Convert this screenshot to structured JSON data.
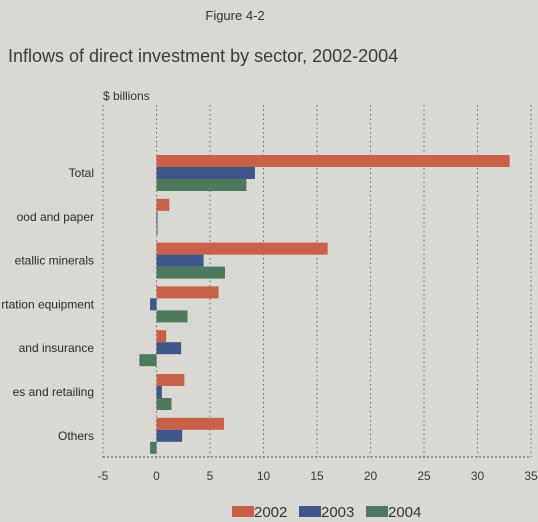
{
  "figure_label": "Figure 4-2",
  "chart_data": {
    "type": "bar",
    "orientation": "horizontal",
    "title": "Inflows of direct investment by sector, 2002-2004",
    "unit_label": "$ billions",
    "categories": [
      "Total",
      "ood and paper",
      "etallic minerals",
      "rtation equipment",
      "and insurance",
      "es and retailing",
      "Others"
    ],
    "series": [
      {
        "name": "2002",
        "color": "#c8604a",
        "values": [
          33.0,
          1.2,
          16.0,
          5.8,
          0.9,
          2.6,
          6.3
        ]
      },
      {
        "name": "2003",
        "color": "#3f568a",
        "values": [
          9.2,
          0.05,
          4.4,
          -0.6,
          2.3,
          0.5,
          2.4
        ]
      },
      {
        "name": "2004",
        "color": "#4d7a5c",
        "values": [
          8.4,
          0.05,
          6.4,
          2.9,
          -1.6,
          1.4,
          -0.6
        ]
      }
    ],
    "xlim": [
      -5,
      35
    ],
    "xticks": [
      -5,
      0,
      5,
      10,
      15,
      20,
      25,
      30,
      35
    ],
    "grid": "vertical dotted",
    "legend_position": "bottom"
  }
}
